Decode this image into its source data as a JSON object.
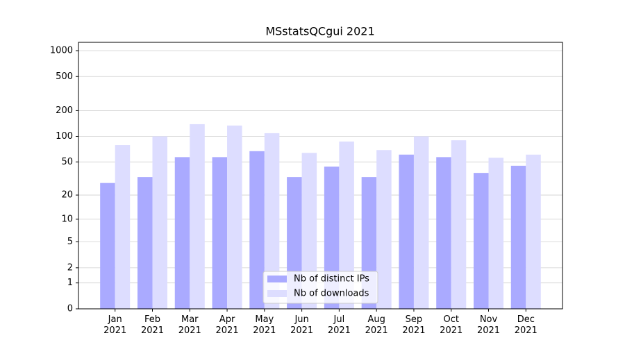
{
  "chart_data": {
    "type": "bar",
    "title": "MSstatsQCgui 2021",
    "categories": [
      "Jan\n2021",
      "Feb\n2021",
      "Mar\n2021",
      "Apr\n2021",
      "May\n2021",
      "Jun\n2021",
      "Jul\n2021",
      "Aug\n2021",
      "Sep\n2021",
      "Oct\n2021",
      "Nov\n2021",
      "Dec\n2021"
    ],
    "series": [
      {
        "name": "Nb of distinct IPs",
        "color": "#aaaaff",
        "values": [
          28,
          33,
          57,
          57,
          67,
          33,
          44,
          33,
          61,
          57,
          37,
          45
        ]
      },
      {
        "name": "Nb of downloads",
        "color": "#ddddff",
        "values": [
          79,
          100,
          139,
          134,
          109,
          64,
          87,
          69,
          100,
          90,
          56,
          61
        ]
      }
    ],
    "scale": "log1p",
    "ylim": [
      0,
      1250
    ],
    "yticks": [
      0,
      1,
      2,
      5,
      10,
      20,
      50,
      100,
      200,
      500,
      1000
    ],
    "grid": true,
    "legend": "lower center"
  }
}
